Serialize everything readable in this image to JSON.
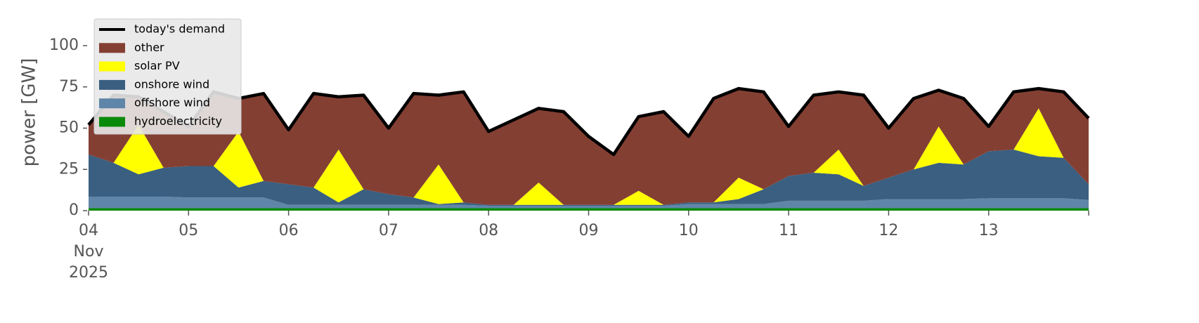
{
  "chart_data": {
    "type": "stacked-area",
    "y_label": "power [GW]",
    "x": [
      "2025-11-04 00:00",
      "2025-11-04 06:00",
      "2025-11-04 12:00",
      "2025-11-04 18:00",
      "2025-11-05 00:00",
      "2025-11-05 06:00",
      "2025-11-05 12:00",
      "2025-11-05 18:00",
      "2025-11-06 00:00",
      "2025-11-06 06:00",
      "2025-11-06 12:00",
      "2025-11-06 18:00",
      "2025-11-07 00:00",
      "2025-11-07 06:00",
      "2025-11-07 12:00",
      "2025-11-07 18:00",
      "2025-11-08 00:00",
      "2025-11-08 06:00",
      "2025-11-08 12:00",
      "2025-11-08 18:00",
      "2025-11-09 00:00",
      "2025-11-09 06:00",
      "2025-11-09 12:00",
      "2025-11-09 18:00",
      "2025-11-10 00:00",
      "2025-11-10 06:00",
      "2025-11-10 12:00",
      "2025-11-10 18:00",
      "2025-11-11 00:00",
      "2025-11-11 06:00",
      "2025-11-11 12:00",
      "2025-11-11 18:00",
      "2025-11-12 00:00",
      "2025-11-12 06:00",
      "2025-11-12 12:00",
      "2025-11-12 18:00",
      "2025-11-13 00:00",
      "2025-11-13 06:00",
      "2025-11-13 12:00",
      "2025-11-13 18:00",
      "2025-11-14 00:00"
    ],
    "series": [
      {
        "name": "hydroelectricity",
        "color": "#0a8a0a",
        "values": [
          1.5,
          1.5,
          1.5,
          1.5,
          1.5,
          1.5,
          1.5,
          1.5,
          1.5,
          1.5,
          1.5,
          1.5,
          1.5,
          1.5,
          1.5,
          1.5,
          1.5,
          1.5,
          1.5,
          1.5,
          1.5,
          1.5,
          1.5,
          1.5,
          1.5,
          1.5,
          1.5,
          1.5,
          1.5,
          1.5,
          1.5,
          1.5,
          1.5,
          1.5,
          1.5,
          1.5,
          1.5,
          1.5,
          1.5,
          1.5,
          1.5
        ]
      },
      {
        "name": "offshore wind",
        "color": "#5f86a8",
        "values": [
          7,
          7,
          7,
          7,
          6.5,
          6.5,
          6.5,
          6.5,
          2,
          2,
          2,
          2,
          2,
          2,
          2,
          2,
          1.5,
          1.5,
          1.5,
          1.5,
          1.5,
          1.5,
          1.5,
          1.5,
          2.5,
          2.5,
          2.5,
          2.5,
          4.5,
          4.5,
          4.5,
          4.5,
          5.5,
          5.5,
          5.5,
          5.5,
          6,
          6,
          6,
          6,
          5
        ]
      },
      {
        "name": "onshore wind",
        "color": "#3a5f80",
        "values": [
          25.5,
          20.5,
          13.5,
          17.5,
          19,
          19,
          6,
          10,
          12.5,
          10.5,
          1.5,
          9.5,
          6.5,
          4.5,
          0.5,
          1.5,
          0.5,
          0.5,
          0.5,
          0.5,
          0.5,
          0.5,
          0.5,
          0.5,
          1,
          1,
          3,
          9,
          15,
          17,
          16,
          9,
          13,
          18,
          22,
          21,
          28.5,
          29.5,
          25.5,
          24.5,
          9.5
        ]
      },
      {
        "name": "solar PV",
        "color": "#ffff00",
        "values": [
          0,
          0,
          30,
          0,
          0,
          0,
          34,
          0,
          0,
          0,
          32,
          0,
          0,
          0,
          24,
          0,
          0,
          0,
          13.5,
          0,
          0,
          0,
          8.5,
          0,
          0,
          0,
          13,
          0,
          0,
          0,
          15,
          0,
          0,
          0,
          22,
          0,
          0,
          0,
          29,
          0,
          0
        ]
      },
      {
        "name": "other",
        "color": "#843f33",
        "values": [
          18,
          41,
          17,
          34,
          24,
          45,
          20,
          53,
          33,
          57,
          32,
          57,
          40,
          63,
          42,
          67,
          44.5,
          51.5,
          45,
          56.5,
          41.5,
          30.5,
          45,
          56.5,
          40,
          63,
          54,
          59,
          30,
          47,
          35,
          55,
          30,
          43,
          22,
          40,
          15,
          35,
          12,
          40,
          40
        ]
      }
    ],
    "demand": {
      "name": "today's demand",
      "color": "#000000",
      "values": [
        52,
        70,
        69,
        60,
        51,
        72,
        68,
        71,
        49,
        71,
        69,
        70,
        50,
        71,
        70,
        72,
        48,
        55,
        62,
        60,
        45,
        34,
        57,
        60,
        45,
        68,
        74,
        72,
        51,
        70,
        72,
        70,
        50,
        68,
        73,
        68,
        51,
        72,
        74,
        72,
        56
      ]
    },
    "xlim": [
      "2025-11-04 00:00",
      "2025-11-14 00:00"
    ],
    "xticks": [
      {
        "value": "2025-11-04 00:00",
        "label": [
          "04",
          "Nov",
          "2025"
        ]
      },
      {
        "value": "2025-11-05 00:00",
        "label": [
          "05"
        ]
      },
      {
        "value": "2025-11-06 00:00",
        "label": [
          "06"
        ]
      },
      {
        "value": "2025-11-07 00:00",
        "label": [
          "07"
        ]
      },
      {
        "value": "2025-11-08 00:00",
        "label": [
          "08"
        ]
      },
      {
        "value": "2025-11-09 00:00",
        "label": [
          "09"
        ]
      },
      {
        "value": "2025-11-10 00:00",
        "label": [
          "10"
        ]
      },
      {
        "value": "2025-11-11 00:00",
        "label": [
          "11"
        ]
      },
      {
        "value": "2025-11-12 00:00",
        "label": [
          "12"
        ]
      },
      {
        "value": "2025-11-13 00:00",
        "label": [
          "13"
        ]
      },
      {
        "value": "2025-11-14 00:00",
        "label": [
          ""
        ]
      }
    ],
    "ylim": [
      0,
      120
    ],
    "yticks": [
      0,
      25,
      50,
      75,
      100
    ],
    "legend": "upper left"
  }
}
